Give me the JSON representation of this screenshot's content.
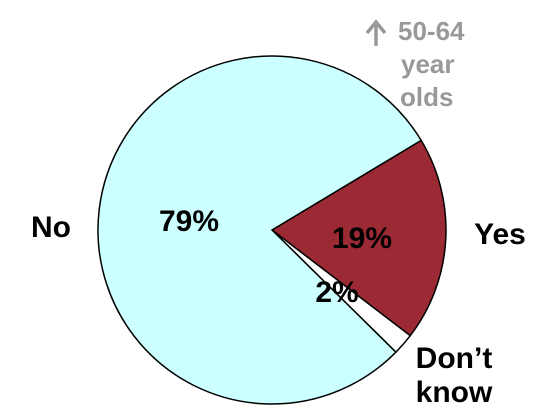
{
  "chart_data": {
    "type": "pie",
    "slices": [
      {
        "label": "Yes",
        "value": 19,
        "value_label": "19%",
        "color": "#9b2a35"
      },
      {
        "label": "Don’t know",
        "value": 2,
        "value_label": "2%",
        "color": "#ffffff"
      },
      {
        "label": "No",
        "value": 79,
        "value_label": "79%",
        "color": "#ccffff"
      }
    ],
    "labels": {
      "yes": "Yes",
      "dont_know_line1": "Don’t",
      "dont_know_line2": "know",
      "no": "No"
    },
    "annotation": {
      "arrow": "↑",
      "line1": "50-64",
      "line2": "year",
      "line3": "olds",
      "color": "#999999"
    }
  }
}
